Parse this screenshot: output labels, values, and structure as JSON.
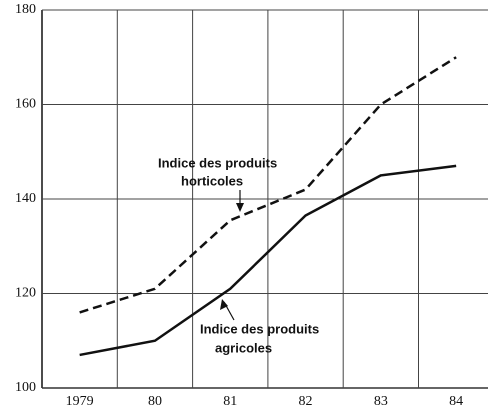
{
  "chart_data": {
    "type": "line",
    "categories": [
      "1979",
      "80",
      "81",
      "82",
      "83",
      "84"
    ],
    "series": [
      {
        "color": "#111",
        "dash": true,
        "values": [
          116,
          121,
          135.5,
          142,
          160,
          170
        ]
      },
      {
        "color": "#111",
        "dash": false,
        "values": [
          107,
          110,
          121,
          136.5,
          145,
          147
        ]
      }
    ],
    "ylim": [
      100,
      180
    ],
    "yticks": [
      100,
      120,
      140,
      160,
      180
    ],
    "grid": true,
    "annotations": [
      {
        "lines": [
          "Indice des produits",
          "horticoles"
        ]
      },
      {
        "lines": [
          "Indice des produits",
          "agricoles"
        ]
      }
    ]
  }
}
